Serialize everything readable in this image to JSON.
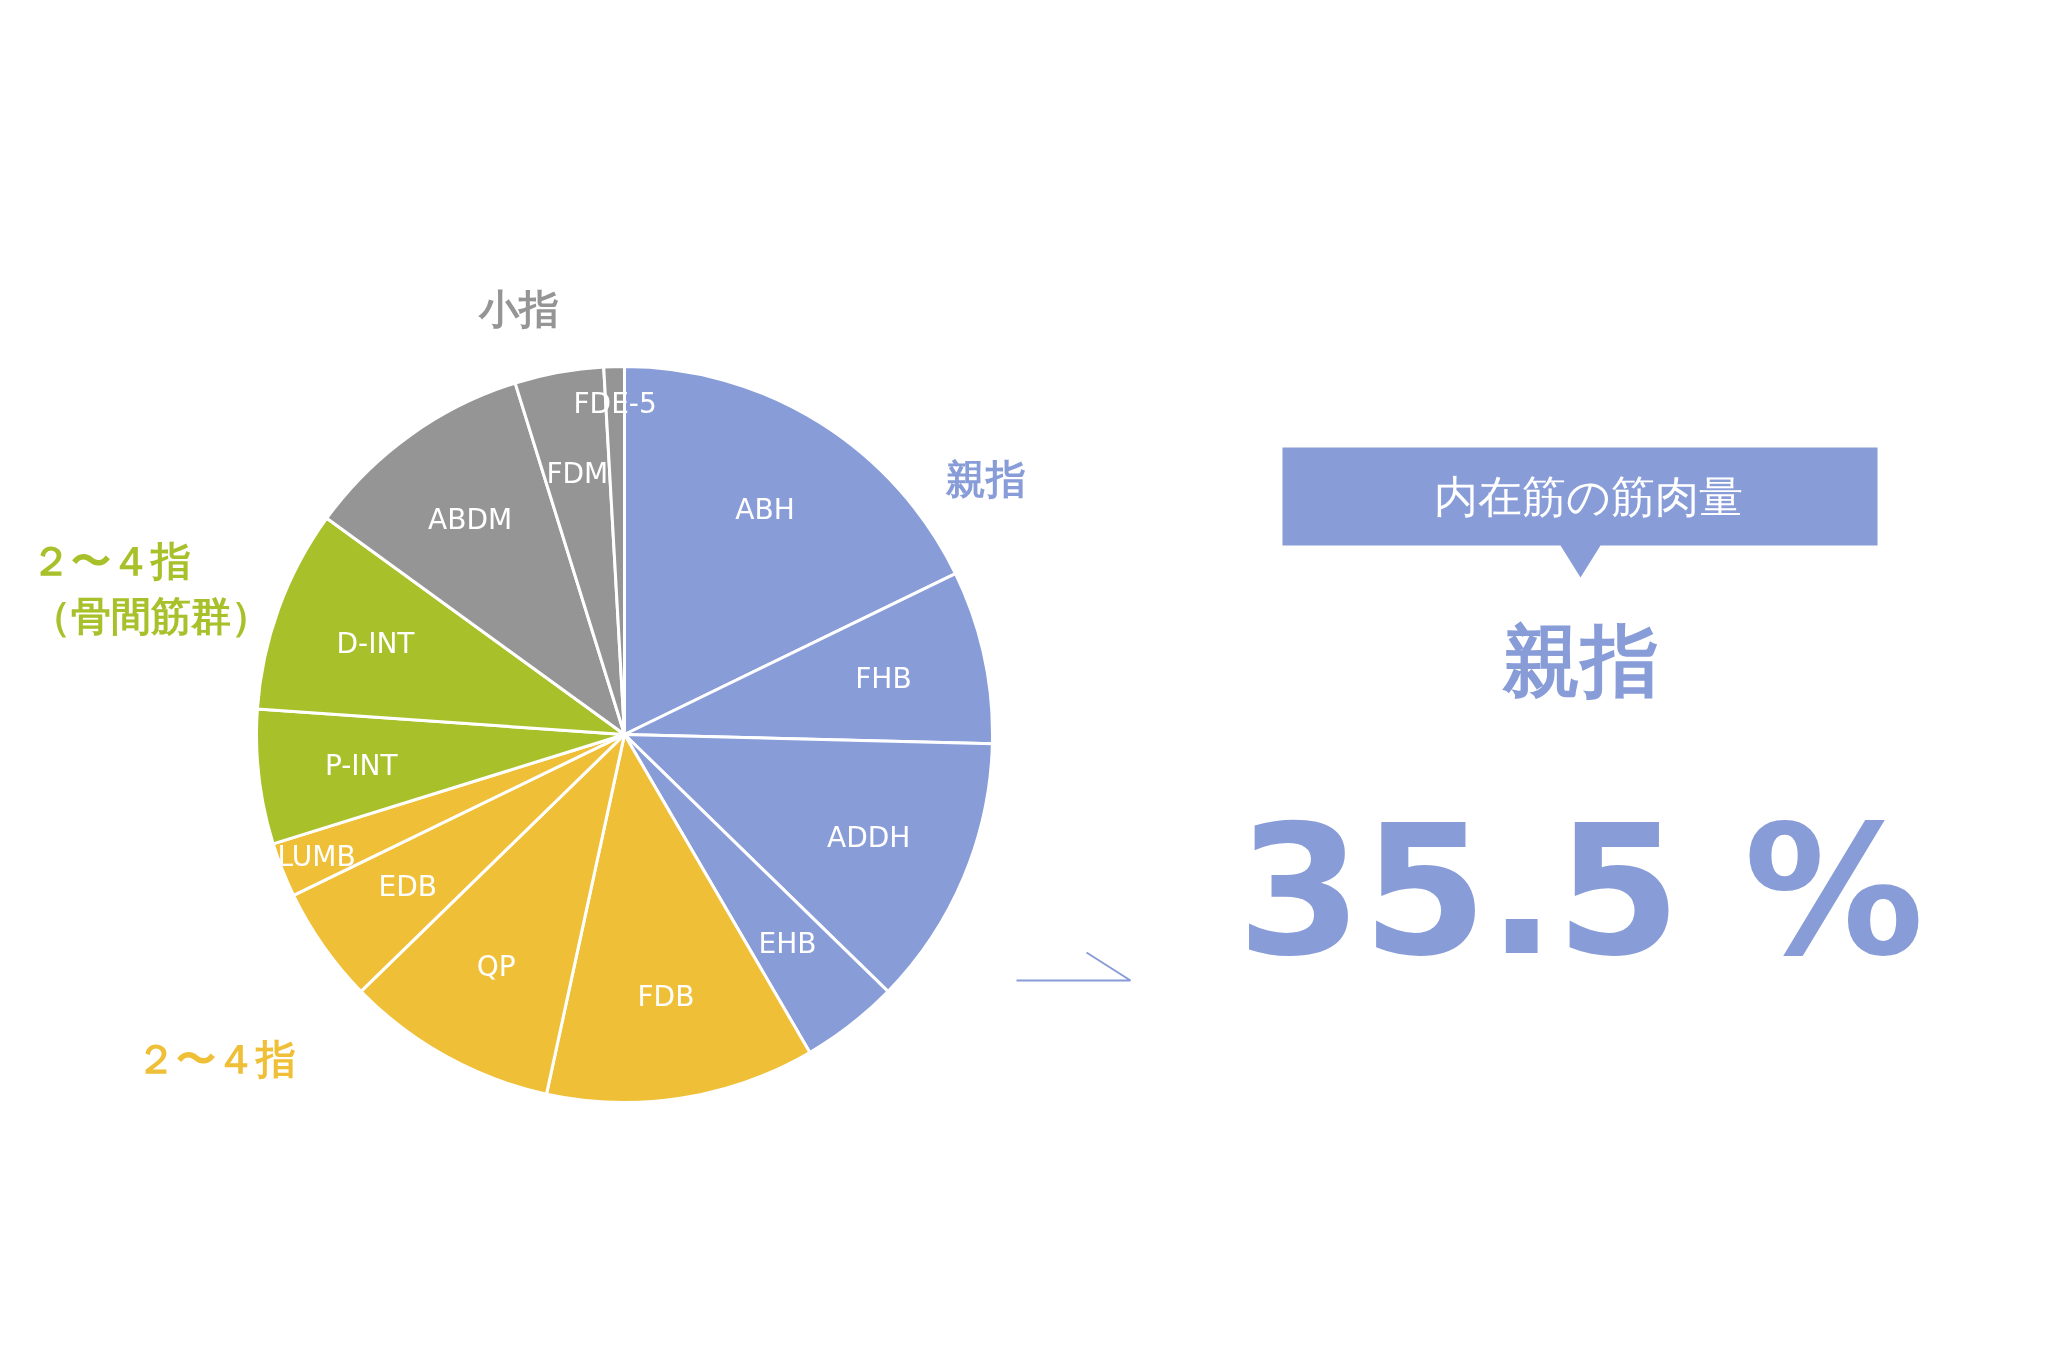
{
  "chart_data": {
    "type": "pie",
    "categories": [
      "ABH",
      "FHB",
      "ADDH",
      "EHB",
      "FDB",
      "QP",
      "EDB",
      "LUMB",
      "P-INT",
      "D-INT",
      "ABDM",
      "FDM",
      "FDE-5"
    ],
    "values": [
      17.8,
      7.6,
      11.9,
      4.3,
      11.8,
      9.3,
      5.1,
      2.4,
      5.9,
      8.9,
      10.2,
      3.9,
      0.9
    ],
    "colors": [
      "#889cd8",
      "#889cd8",
      "#889cd8",
      "#889cd8",
      "#f0bf38",
      "#f0bf38",
      "#f0bf38",
      "#f0bf38",
      "#a8c02a",
      "#a8c02a",
      "#959595",
      "#959595",
      "#959595"
    ],
    "data_labels": false,
    "annotations": [
      "親指",
      "２〜４指",
      "（骨間筋群）",
      "２〜４指",
      "小指",
      "内在筋の筋肉量",
      "親指",
      "35.5 %"
    ]
  }
}
